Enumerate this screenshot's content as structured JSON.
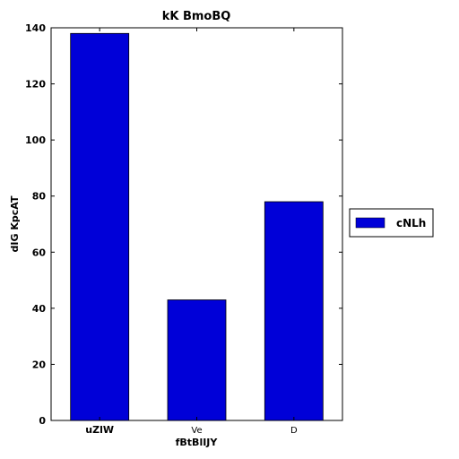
{
  "chart_data": {
    "type": "bar",
    "title": "kK BmoBQ",
    "xlabel": "fBtBlIJY",
    "ylabel": "dIG KpcAT",
    "categories": [
      "uZlW",
      "Ve",
      "D"
    ],
    "category_bold": [
      true,
      false,
      false
    ],
    "series": [
      {
        "name": "cNLh",
        "values": [
          138,
          43,
          78
        ],
        "color": "#0000d8"
      }
    ],
    "ylim": [
      0,
      140
    ],
    "yticks": [
      0,
      20,
      40,
      60,
      80,
      100,
      120,
      140
    ],
    "grid": false,
    "legend_position": "right"
  }
}
